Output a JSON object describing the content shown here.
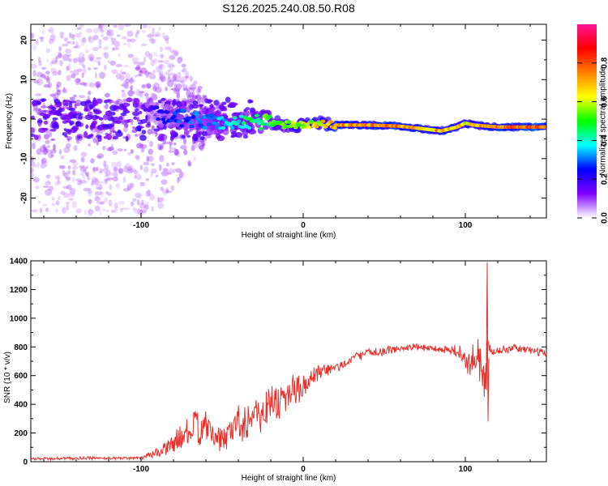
{
  "figure": {
    "title": "S126.2025.240.08.50.R08"
  },
  "chart_data": [
    {
      "type": "heatmap",
      "xlabel": "Height of straight line (km)",
      "ylabel": "Frequency (Hz)",
      "xlim": [
        -168,
        150
      ],
      "ylim": [
        -25,
        24
      ],
      "xticks": [
        -100,
        0,
        100
      ],
      "yticks": [
        -20,
        -10,
        0,
        10,
        20
      ],
      "colorbar": {
        "label": "Normalized spectral amplitude",
        "range": [
          0.0,
          1.0
        ],
        "ticks": [
          0.0,
          0.2,
          0.4,
          0.6,
          0.8
        ],
        "tick_labels": [
          "0.0",
          "0.2",
          "0.4",
          "0.6",
          "0.8"
        ],
        "colors": [
          "#ffffff",
          "#8000ff",
          "#0000ff",
          "#00ffff",
          "#00ff00",
          "#ffff00",
          "#ff8000",
          "#ff0000",
          "#ff1493"
        ]
      },
      "ridge": {
        "x": [
          -95,
          -80,
          -60,
          -40,
          -25,
          -10,
          0,
          10,
          20,
          40,
          60,
          75,
          85,
          95,
          100,
          105,
          120,
          150
        ],
        "y": [
          1.5,
          0.5,
          -0.5,
          -1,
          -0.5,
          -1.5,
          -1.5,
          -1,
          -1.5,
          -1.5,
          -1.8,
          -2.5,
          -3,
          -2,
          -1,
          -1.5,
          -2,
          -2
        ],
        "amplitude": [
          0.2,
          0.3,
          0.35,
          0.45,
          0.55,
          0.6,
          0.65,
          0.72,
          0.8,
          0.85,
          0.85,
          0.8,
          0.8,
          0.75,
          0.7,
          0.75,
          0.85,
          0.9
        ]
      },
      "noise_region_x": [
        -168,
        -90
      ]
    },
    {
      "type": "line",
      "xlabel": "Height of straight line (km)",
      "ylabel": "SNR (10 * v/v)",
      "xlim": [
        -168,
        150
      ],
      "ylim": [
        0,
        1400
      ],
      "xticks": [
        -100,
        0,
        100
      ],
      "yticks": [
        0,
        200,
        400,
        600,
        800,
        1000,
        1200,
        1400
      ],
      "color": "#e8302b",
      "series": [
        {
          "x": [
            -168,
            -150,
            -130,
            -110,
            -100,
            -95,
            -90,
            -85,
            -80,
            -75,
            -70,
            -65,
            -60,
            -55,
            -50,
            -45,
            -40,
            -35,
            -30,
            -25,
            -20,
            -15,
            -10,
            -5,
            0,
            5,
            10,
            15,
            20,
            25,
            30,
            40,
            50,
            60,
            70,
            80,
            90,
            95,
            100,
            103,
            106,
            110,
            112,
            114,
            116,
            120,
            130,
            140,
            150
          ],
          "y": [
            20,
            22,
            25,
            25,
            30,
            45,
            60,
            90,
            130,
            170,
            210,
            240,
            230,
            180,
            150,
            220,
            280,
            300,
            320,
            360,
            400,
            430,
            450,
            500,
            540,
            560,
            610,
            640,
            650,
            680,
            720,
            760,
            770,
            790,
            800,
            790,
            780,
            770,
            700,
            650,
            760,
            680,
            500,
            800,
            760,
            780,
            790,
            780,
            750
          ],
          "spread": [
            12,
            12,
            12,
            12,
            15,
            25,
            40,
            60,
            80,
            110,
            140,
            160,
            130,
            100,
            110,
            130,
            150,
            170,
            180,
            170,
            170,
            180,
            160,
            140,
            120,
            100,
            90,
            60,
            50,
            40,
            35,
            35,
            35,
            35,
            30,
            30,
            40,
            60,
            90,
            110,
            120,
            180,
            300,
            120,
            40,
            30,
            30,
            30,
            30
          ]
        }
      ]
    }
  ]
}
